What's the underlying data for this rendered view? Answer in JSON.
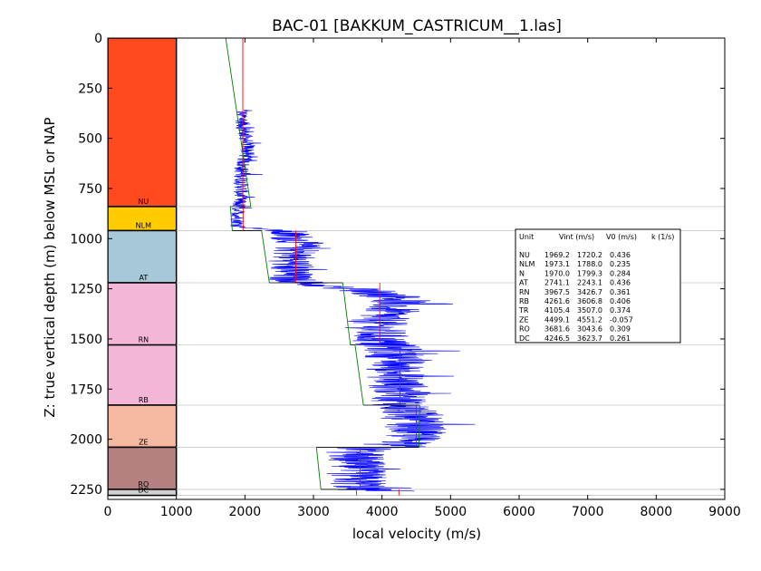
{
  "chart_data": {
    "type": "line",
    "title": "BAC-01 [BAKKUM_CASTRICUM__1.las]",
    "xlabel": "local velocity (m/s)",
    "ylabel": "Z: true vertical depth (m) below MSL or NAP",
    "xlim": [
      0,
      9000
    ],
    "ylim": [
      0,
      2300
    ],
    "y_inverted": true,
    "x_ticks": [
      0,
      1000,
      2000,
      3000,
      4000,
      5000,
      6000,
      7000,
      8000,
      9000
    ],
    "y_ticks": [
      0,
      250,
      500,
      750,
      1000,
      1250,
      1500,
      1750,
      2000,
      2250
    ],
    "units": [
      {
        "name": "NU",
        "top": 0,
        "base": 840,
        "color": "#ff4a1f",
        "vint": 1969.2,
        "v0": 1720.2,
        "k": 0.436
      },
      {
        "name": "NLM",
        "top": 840,
        "base": 960,
        "color": "#ffcc00",
        "vint": 1973.1,
        "v0": 1788.0,
        "k": 0.235
      },
      {
        "name": "AT",
        "top": 960,
        "base": 1220,
        "color": "#a6c8d8",
        "vint": 2741.1,
        "v0": 2243.1,
        "k": 0.436
      },
      {
        "name": "RN",
        "top": 1220,
        "base": 1530,
        "color": "#f3b6d6",
        "vint": 3967.5,
        "v0": 3426.7,
        "k": 0.361
      },
      {
        "name": "RB",
        "top": 1530,
        "base": 1830,
        "color": "#f3b6d6",
        "vint": 4261.6,
        "v0": 3606.8,
        "k": 0.406
      },
      {
        "name": "ZE",
        "top": 1830,
        "base": 2040,
        "color": "#f5b8a0",
        "vint": 4499.1,
        "v0": 4551.2,
        "k": -0.057
      },
      {
        "name": "RO",
        "top": 2040,
        "base": 2250,
        "color": "#b48080",
        "vint": 3681.6,
        "v0": 3043.6,
        "k": 0.309
      },
      {
        "name": "DC",
        "top": 2250,
        "base": 2280,
        "color": "#d0d0d0",
        "vint": 4246.5,
        "v0": 3623.7,
        "k": 0.261
      }
    ],
    "legend": {
      "placement": "right-middle",
      "header": [
        "Unit",
        "Vint (m/s)",
        "V0 (m/s)",
        "k (1/s)"
      ],
      "rows": [
        [
          "NU",
          "1969.2",
          "1720.2",
          "0.436"
        ],
        [
          "NLM",
          "1973.1",
          "1788.0",
          "0.235"
        ],
        [
          "N",
          "1970.0",
          "1799.3",
          "0.284"
        ],
        [
          "AT",
          "2741.1",
          "2243.1",
          "0.436"
        ],
        [
          "RN",
          "3967.5",
          "3426.7",
          "0.361"
        ],
        [
          "RB",
          "4261.6",
          "3606.8",
          "0.406"
        ],
        [
          "TR",
          "4105.4",
          "3507.0",
          "0.374"
        ],
        [
          "ZE",
          "4499.1",
          "4551.2",
          "-0.057"
        ],
        [
          "RO",
          "3681.6",
          "3043.6",
          "0.309"
        ],
        [
          "DC",
          "4246.5",
          "3623.7",
          "0.261"
        ]
      ]
    },
    "velocity_log": {
      "color": "#0000ff",
      "depth_start": 360,
      "depth_end": 2260,
      "profile": [
        [
          360,
          1950
        ],
        [
          450,
          1980
        ],
        [
          550,
          2050
        ],
        [
          650,
          1950
        ],
        [
          750,
          1950
        ],
        [
          850,
          1900
        ],
        [
          940,
          1900
        ],
        [
          960,
          2550
        ],
        [
          1020,
          2800
        ],
        [
          1100,
          2700
        ],
        [
          1200,
          2650
        ],
        [
          1230,
          3000
        ],
        [
          1260,
          3800
        ],
        [
          1300,
          4300
        ],
        [
          1350,
          4150
        ],
        [
          1400,
          3950
        ],
        [
          1450,
          3900
        ],
        [
          1520,
          4000
        ],
        [
          1560,
          4200
        ],
        [
          1650,
          4200
        ],
        [
          1750,
          4250
        ],
        [
          1830,
          4300
        ],
        [
          1880,
          4400
        ],
        [
          1950,
          4500
        ],
        [
          2030,
          4400
        ],
        [
          2060,
          3600
        ],
        [
          2150,
          3600
        ],
        [
          2250,
          3700
        ],
        [
          2260,
          4200
        ]
      ]
    },
    "interval_velocity_color": "#ff0000",
    "linear_trend_color": "#008000",
    "boundary_line_color": "#c8c8c8"
  }
}
